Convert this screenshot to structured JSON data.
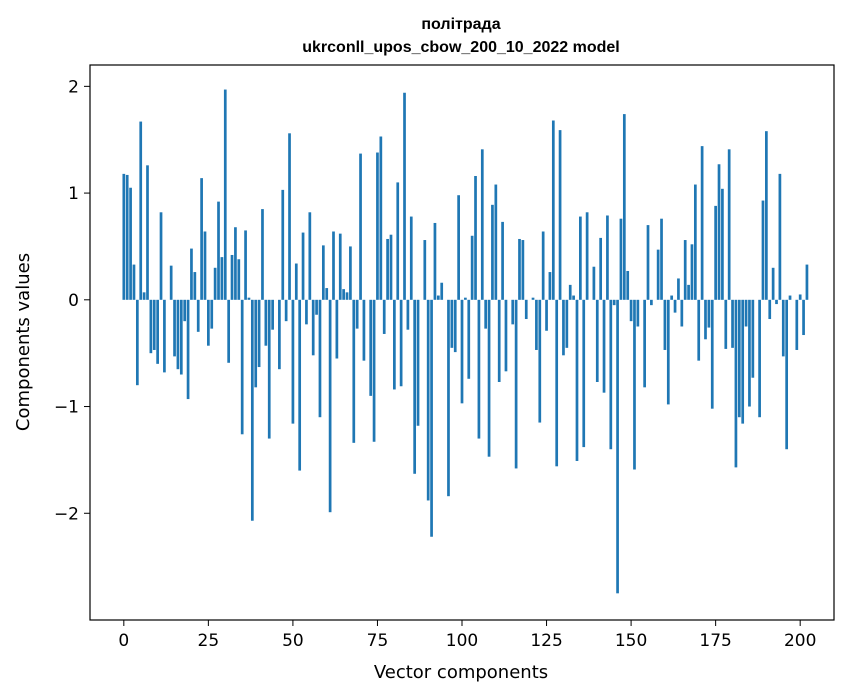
{
  "chart_data": {
    "type": "bar",
    "title_line1": "політрада",
    "title_line2": "ukrconll_upos_cbow_200_10_2022 model",
    "xlabel": "Vector components",
    "ylabel": "Components values",
    "xlim": [
      -10,
      210
    ],
    "ylim": [
      -3.0,
      2.2
    ],
    "xticks": [
      0,
      25,
      50,
      75,
      100,
      125,
      150,
      175,
      200
    ],
    "yticks": [
      -2,
      -1,
      0,
      1,
      2
    ],
    "ytick_labels": [
      "−2",
      "−1",
      "0",
      "1",
      "2"
    ],
    "grid": false,
    "bar_color": "#1f77b4",
    "values": [
      1.18,
      1.17,
      1.05,
      0.33,
      -0.8,
      1.67,
      0.07,
      1.26,
      -0.5,
      -0.47,
      -0.6,
      0.82,
      -0.68,
      0.0,
      0.32,
      -0.53,
      -0.65,
      -0.7,
      -0.2,
      -0.93,
      0.48,
      0.26,
      -0.3,
      1.14,
      0.64,
      -0.43,
      -0.27,
      0.3,
      0.92,
      0.4,
      1.97,
      -0.59,
      0.42,
      0.68,
      0.38,
      -1.26,
      0.65,
      0.02,
      -2.07,
      -0.82,
      -0.63,
      0.85,
      -0.43,
      -1.3,
      -0.28,
      0.0,
      -0.65,
      1.03,
      -0.2,
      1.56,
      -1.16,
      0.34,
      -1.6,
      0.63,
      -0.23,
      0.82,
      -0.52,
      -0.14,
      -1.1,
      0.51,
      0.11,
      -1.99,
      0.64,
      -0.55,
      0.62,
      0.1,
      0.07,
      0.5,
      -1.34,
      -0.27,
      1.37,
      -0.57,
      0.0,
      -0.9,
      -1.33,
      1.38,
      1.53,
      -0.32,
      0.57,
      0.61,
      -0.84,
      1.1,
      -0.81,
      1.94,
      -0.28,
      0.78,
      -1.63,
      -1.18,
      0.0,
      0.56,
      -1.88,
      -2.22,
      0.72,
      0.04,
      0.16,
      0.0,
      -1.84,
      -0.45,
      -0.49,
      0.98,
      -0.97,
      0.02,
      -0.74,
      0.6,
      1.16,
      -1.3,
      1.41,
      -0.27,
      -1.47,
      0.89,
      1.08,
      -0.77,
      0.73,
      -0.67,
      0.0,
      -0.23,
      -1.58,
      0.57,
      0.56,
      -0.18,
      0.0,
      0.02,
      -0.47,
      -1.15,
      0.64,
      -0.29,
      0.26,
      1.68,
      -1.56,
      1.59,
      -0.52,
      -0.45,
      0.14,
      0.04,
      -1.51,
      0.78,
      -1.38,
      0.82,
      0.0,
      0.31,
      -0.77,
      0.58,
      -0.87,
      0.79,
      -1.4,
      -0.05,
      -2.75,
      0.76,
      1.74,
      0.27,
      -0.2,
      -1.59,
      -0.25,
      0.0,
      -0.82,
      0.7,
      -0.05,
      0.0,
      0.47,
      0.76,
      -0.47,
      -0.98,
      0.04,
      -0.12,
      0.2,
      -0.25,
      0.56,
      0.14,
      0.52,
      1.08,
      -0.57,
      1.44,
      -0.37,
      -0.26,
      -1.02,
      0.88,
      1.27,
      1.04,
      -0.46,
      1.41,
      -0.45,
      -1.57,
      -1.1,
      -1.16,
      -0.25,
      -1.0,
      -0.73,
      0.0,
      -1.1,
      0.93,
      1.58,
      -0.18,
      0.3,
      -0.04,
      1.18,
      -0.53,
      -1.4,
      0.04,
      0.0,
      -0.47,
      0.05,
      -0.33,
      0.33
    ]
  }
}
